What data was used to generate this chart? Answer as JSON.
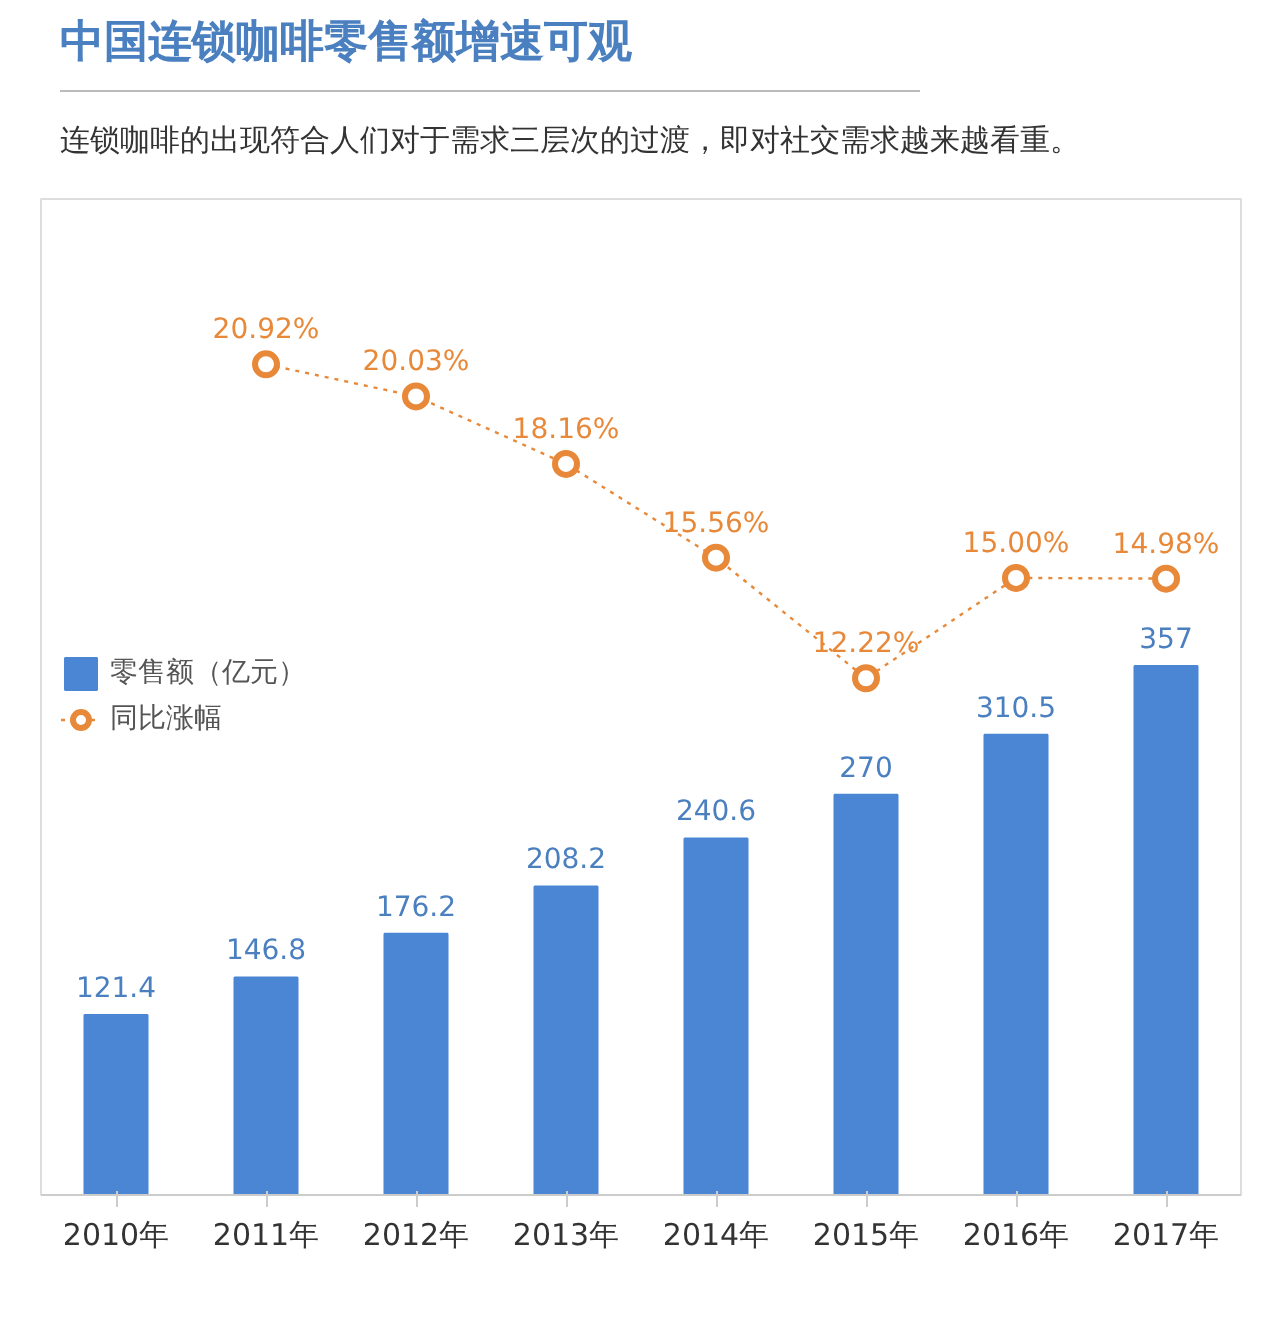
{
  "chart_data": {
    "type": "bar",
    "title": "中国连锁咖啡零售额增速可观",
    "subtitle": "连锁咖啡的出现符合人们对于需求三层次的过渡，即对社交需求越来越看重。",
    "categories": [
      "2010年",
      "2011年",
      "2012年",
      "2013年",
      "2014年",
      "2015年",
      "2016年",
      "2017年"
    ],
    "series": [
      {
        "name": "零售额（亿元）",
        "color": "#4a86d4",
        "values": [
          121.4,
          146.8,
          176.2,
          208.2,
          240.6,
          270,
          310.5,
          357
        ]
      },
      {
        "name": "同比涨幅",
        "type": "line",
        "axis": "y2",
        "color": "#e8893a",
        "marker": "circle",
        "line_style": "dotted",
        "values": [
          null,
          20.92,
          20.03,
          18.16,
          15.56,
          12.22,
          15.0,
          14.98
        ],
        "value_labels": [
          null,
          "20.92%",
          "20.03%",
          "18.16%",
          "15.56%",
          "12.22%",
          "15.00%",
          "14.98%"
        ]
      }
    ],
    "data_labels": true,
    "ylim": [
      0,
      672
    ],
    "y2lim": [
      -2.1,
      25.5
    ],
    "tick_labels": "x",
    "grid": false,
    "legend": "left"
  }
}
